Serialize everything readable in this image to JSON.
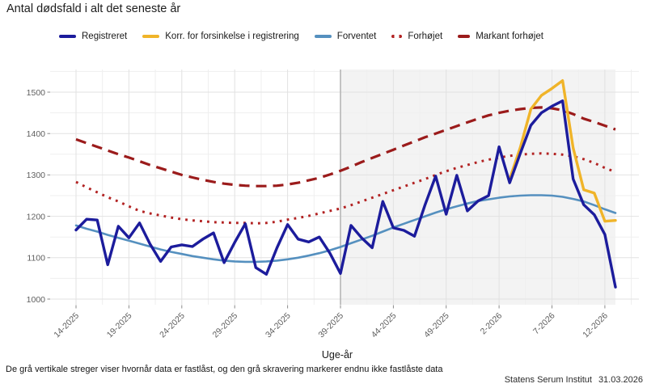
{
  "title": "Antal dødsfald i alt det seneste år",
  "legend": {
    "items": [
      {
        "label": "Registreret",
        "color": "#1c1c9c",
        "style": "solid"
      },
      {
        "label": "Korr. for forsinkelse i registrering",
        "color": "#f0b429",
        "style": "solid"
      },
      {
        "label": "Forventet",
        "color": "#5590bf",
        "style": "solid"
      },
      {
        "label": "Forhøjet",
        "color": "#b22222",
        "style": "dotted"
      },
      {
        "label": "Markant forhøjet",
        "color": "#9b1b1b",
        "style": "dashed"
      }
    ]
  },
  "chart_data": {
    "type": "line",
    "title": "Antal dødsfald i alt det seneste år",
    "xlabel": "Uge-år",
    "ylabel": "",
    "ylim": [
      1000,
      1550
    ],
    "y_ticks": [
      1000,
      1100,
      1200,
      1300,
      1400,
      1500
    ],
    "y_minor": [
      1050,
      1150,
      1250,
      1350,
      1450,
      1550
    ],
    "n_points": 52,
    "x_categories": [
      "14-2025",
      "15-2025",
      "16-2025",
      "17-2025",
      "18-2025",
      "19-2025",
      "20-2025",
      "21-2025",
      "22-2025",
      "23-2025",
      "24-2025",
      "25-2025",
      "26-2025",
      "27-2025",
      "28-2025",
      "29-2025",
      "30-2025",
      "31-2025",
      "32-2025",
      "33-2025",
      "34-2025",
      "35-2025",
      "36-2025",
      "37-2025",
      "38-2025",
      "39-2025",
      "40-2025",
      "41-2025",
      "42-2025",
      "43-2025",
      "44-2025",
      "45-2025",
      "46-2025",
      "47-2025",
      "48-2025",
      "49-2025",
      "50-2025",
      "51-2025",
      "52-2025",
      "1-2026",
      "2-2026",
      "3-2026",
      "4-2026",
      "5-2026",
      "6-2026",
      "7-2026",
      "8-2026",
      "9-2026",
      "10-2026",
      "11-2026",
      "12-2026",
      "13-2026"
    ],
    "x_tick_labels": [
      "14-2025",
      "19-2025",
      "24-2025",
      "29-2025",
      "34-2025",
      "39-2025",
      "44-2025",
      "49-2025",
      "2-2026",
      "7-2026",
      "12-2026"
    ],
    "x_tick_indices": [
      0,
      5,
      10,
      15,
      20,
      25,
      30,
      35,
      40,
      45,
      50
    ],
    "shaded_from_index": 25,
    "locked_marker_week": "39-2025",
    "series": [
      {
        "id": "registreret",
        "name": "Registreret",
        "color": "#1c1c9c",
        "width": 3.4,
        "dash": "",
        "values": [
          1167,
          1193,
          1191,
          1083,
          1176,
          1148,
          1184,
          1133,
          1091,
          1126,
          1131,
          1127,
          1145,
          1160,
          1088,
          1137,
          1182,
          1076,
          1060,
          1124,
          1180,
          1145,
          1138,
          1150,
          1111,
          1062,
          1178,
          1148,
          1124,
          1236,
          1172,
          1166,
          1152,
          1228,
          1297,
          1205,
          1299,
          1213,
          1237,
          1250,
          1368,
          1281,
          1352,
          1420,
          1450,
          1466,
          1479,
          1290,
          1228,
          1204,
          1156,
          1029
        ]
      },
      {
        "id": "korrigeret",
        "name": "Korr. for forsinkelse i registrering",
        "color": "#f0b429",
        "width": 3.4,
        "dash": "",
        "start_index": 41,
        "values": [
          1290,
          1366,
          1459,
          1492,
          1509,
          1528,
          1365,
          1264,
          1256,
          1188,
          1190
        ]
      },
      {
        "id": "forventet",
        "name": "Forventet",
        "color": "#5590bf",
        "width": 2.6,
        "dash": "",
        "values": [
          1178,
          1170,
          1163,
          1155,
          1148,
          1141,
          1134,
          1127,
          1120,
          1114,
          1109,
          1104,
          1100,
          1096,
          1093,
          1091,
          1090,
          1090,
          1091,
          1093,
          1096,
          1100,
          1105,
          1111,
          1118,
          1126,
          1135,
          1144,
          1153,
          1163,
          1173,
          1182,
          1191,
          1200,
          1209,
          1217,
          1224,
          1231,
          1237,
          1241,
          1245,
          1248,
          1250,
          1251,
          1251,
          1250,
          1247,
          1242,
          1236,
          1227,
          1217,
          1208
        ]
      },
      {
        "id": "forhojet",
        "name": "Forhøjet",
        "color": "#b22222",
        "width": 3,
        "dash": "2.8 6.2",
        "values": [
          1283,
          1270,
          1258,
          1246,
          1236,
          1224,
          1213,
          1207,
          1202,
          1197,
          1193,
          1190,
          1188,
          1186,
          1185,
          1184,
          1184,
          1183,
          1184,
          1187,
          1192,
          1196,
          1201,
          1207,
          1213,
          1219,
          1227,
          1236,
          1245,
          1254,
          1263,
          1272,
          1281,
          1290,
          1300,
          1309,
          1317,
          1324,
          1331,
          1337,
          1342,
          1346,
          1349,
          1351,
          1352,
          1351,
          1349,
          1345,
          1338,
          1329,
          1317,
          1307
        ]
      },
      {
        "id": "markant-forhojet",
        "name": "Markant forhøjet",
        "color": "#9b1b1b",
        "width": 3.2,
        "dash": "13 8",
        "values": [
          1386,
          1377,
          1368,
          1359,
          1350,
          1342,
          1333,
          1324,
          1316,
          1308,
          1300,
          1294,
          1288,
          1283,
          1279,
          1276,
          1274,
          1273,
          1273,
          1274,
          1277,
          1281,
          1287,
          1293,
          1301,
          1310,
          1320,
          1331,
          1341,
          1351,
          1361,
          1371,
          1381,
          1391,
          1400,
          1409,
          1418,
          1427,
          1436,
          1444,
          1450,
          1455,
          1459,
          1462,
          1463,
          1461,
          1456,
          1447,
          1436,
          1428,
          1419,
          1410
        ]
      }
    ],
    "legend_position": "top",
    "grid": true
  },
  "footer": {
    "note": "De grå vertikale streger viser hvornår data er fastlåst, og den grå skravering markerer endnu ikke fastlåste data",
    "source_name": "Statens Serum Institut",
    "source_date": "31.03.2026"
  }
}
